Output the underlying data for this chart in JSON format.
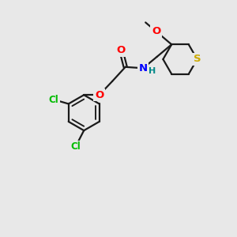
{
  "background_color": "#e8e8e8",
  "bond_color": "#1a1a1a",
  "bond_width": 1.6,
  "atom_colors": {
    "O": "#ff0000",
    "N": "#0000ff",
    "S": "#ccaa00",
    "Cl": "#00bb00",
    "C": "#1a1a1a",
    "H": "#008888"
  },
  "font_size_atom": 9.5,
  "font_size_small": 8.0,
  "figsize": [
    3.0,
    3.0
  ],
  "dpi": 100
}
